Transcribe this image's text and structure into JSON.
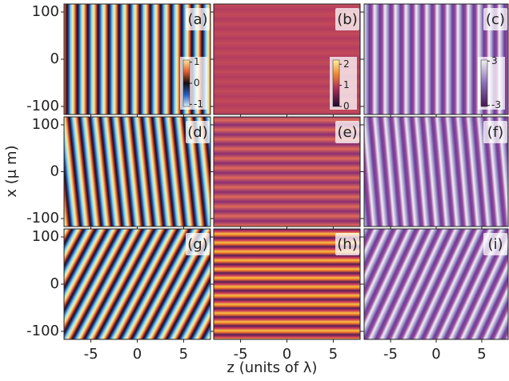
{
  "chart_data": {
    "type": "heatmap-grid",
    "xlabel": "z (units of λ)",
    "ylabel": "x (μ m)",
    "xlim": [
      -7.9,
      7.9
    ],
    "xticks": [
      -5,
      0,
      5
    ],
    "ylim": [
      -117,
      117
    ],
    "yticks": [
      -100,
      0,
      100
    ],
    "panels": [
      {
        "label": "(a)"
      },
      {
        "label": "(b)"
      },
      {
        "label": "(c)"
      },
      {
        "label": "(d)"
      },
      {
        "label": "(e)"
      },
      {
        "label": "(f)"
      },
      {
        "label": "(g)"
      },
      {
        "label": "(h)"
      },
      {
        "label": "(i)"
      }
    ],
    "colorbars": [
      {
        "lim": [
          -1.1,
          1.1
        ],
        "ticks": [
          -1,
          0,
          1
        ]
      },
      {
        "lim": [
          0,
          2.2
        ],
        "ticks": [
          0,
          1,
          2
        ]
      },
      {
        "lim": [
          -3.14,
          3.14
        ],
        "ticks": [
          -3,
          3
        ]
      }
    ]
  }
}
